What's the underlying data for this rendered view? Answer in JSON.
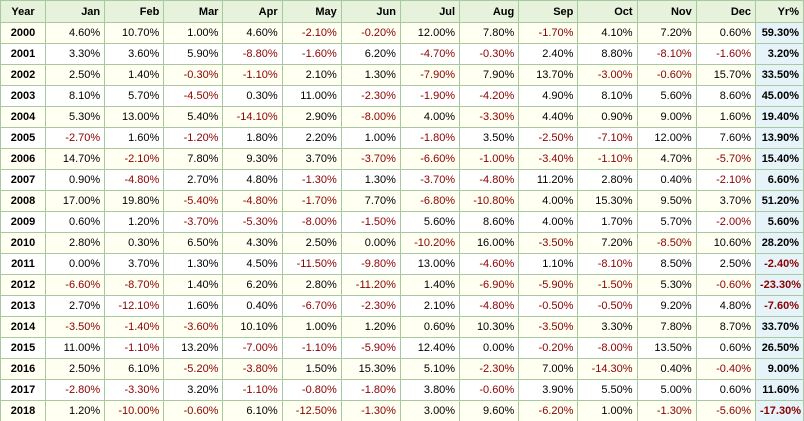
{
  "table": {
    "header": [
      "Year",
      "Jan",
      "Feb",
      "Mar",
      "Apr",
      "May",
      "Jun",
      "Jul",
      "Aug",
      "Sep",
      "Oct",
      "Nov",
      "Dec",
      "Yr%"
    ],
    "rows": [
      [
        "2000",
        "4.60%",
        "10.70%",
        "1.00%",
        "4.60%",
        "-2.10%",
        "-0.20%",
        "12.00%",
        "7.80%",
        "-1.70%",
        "4.10%",
        "7.20%",
        "0.60%",
        "59.30%"
      ],
      [
        "2001",
        "3.30%",
        "3.60%",
        "5.90%",
        "-8.80%",
        "-1.60%",
        "6.20%",
        "-4.70%",
        "-0.30%",
        "2.40%",
        "8.80%",
        "-8.10%",
        "-1.60%",
        "3.20%"
      ],
      [
        "2002",
        "2.50%",
        "1.40%",
        "-0.30%",
        "-1.10%",
        "2.10%",
        "1.30%",
        "-7.90%",
        "7.90%",
        "13.70%",
        "-3.00%",
        "-0.60%",
        "15.70%",
        "33.50%"
      ],
      [
        "2003",
        "8.10%",
        "5.70%",
        "-4.50%",
        "0.30%",
        "11.00%",
        "-2.30%",
        "-1.90%",
        "-4.20%",
        "4.90%",
        "8.10%",
        "5.60%",
        "8.60%",
        "45.00%"
      ],
      [
        "2004",
        "5.30%",
        "13.00%",
        "5.40%",
        "-14.10%",
        "2.90%",
        "-8.00%",
        "4.00%",
        "-3.30%",
        "4.40%",
        "0.90%",
        "9.00%",
        "1.60%",
        "19.40%"
      ],
      [
        "2005",
        "-2.70%",
        "1.60%",
        "-1.20%",
        "1.80%",
        "2.20%",
        "1.00%",
        "-1.80%",
        "3.50%",
        "-2.50%",
        "-7.10%",
        "12.00%",
        "7.60%",
        "13.90%"
      ],
      [
        "2006",
        "14.70%",
        "-2.10%",
        "7.80%",
        "9.30%",
        "3.70%",
        "-3.70%",
        "-6.60%",
        "-1.00%",
        "-3.40%",
        "-1.10%",
        "4.70%",
        "-5.70%",
        "15.40%"
      ],
      [
        "2007",
        "0.90%",
        "-4.80%",
        "2.70%",
        "4.80%",
        "-1.30%",
        "1.30%",
        "-3.70%",
        "-4.80%",
        "11.20%",
        "2.80%",
        "0.40%",
        "-2.10%",
        "6.60%"
      ],
      [
        "2008",
        "17.00%",
        "19.80%",
        "-5.40%",
        "-4.80%",
        "-1.70%",
        "7.70%",
        "-6.80%",
        "-10.80%",
        "4.00%",
        "15.30%",
        "9.50%",
        "3.70%",
        "51.20%"
      ],
      [
        "2009",
        "0.60%",
        "1.20%",
        "-3.70%",
        "-5.30%",
        "-8.00%",
        "-1.50%",
        "5.60%",
        "8.60%",
        "4.00%",
        "1.70%",
        "5.70%",
        "-2.00%",
        "5.60%"
      ],
      [
        "2010",
        "2.80%",
        "0.30%",
        "6.50%",
        "4.30%",
        "2.50%",
        "0.00%",
        "-10.20%",
        "16.00%",
        "-3.50%",
        "7.20%",
        "-8.50%",
        "10.60%",
        "28.20%"
      ],
      [
        "2011",
        "0.00%",
        "3.70%",
        "1.30%",
        "4.50%",
        "-11.50%",
        "-9.80%",
        "13.00%",
        "-4.60%",
        "1.10%",
        "-8.10%",
        "8.50%",
        "2.50%",
        "-2.40%"
      ],
      [
        "2012",
        "-6.60%",
        "-8.70%",
        "1.40%",
        "6.20%",
        "2.80%",
        "-11.20%",
        "1.40%",
        "-6.90%",
        "-5.90%",
        "-1.50%",
        "5.30%",
        "-0.60%",
        "-23.30%"
      ],
      [
        "2013",
        "2.70%",
        "-12.10%",
        "1.60%",
        "0.40%",
        "-6.70%",
        "-2.30%",
        "2.10%",
        "-4.80%",
        "-0.50%",
        "-0.50%",
        "9.20%",
        "4.80%",
        "-7.60%"
      ],
      [
        "2014",
        "-3.50%",
        "-1.40%",
        "-3.60%",
        "10.10%",
        "1.00%",
        "1.20%",
        "0.60%",
        "10.30%",
        "-3.50%",
        "3.30%",
        "7.80%",
        "8.70%",
        "33.70%"
      ],
      [
        "2015",
        "11.00%",
        "-1.10%",
        "13.20%",
        "-7.00%",
        "-1.10%",
        "-5.90%",
        "12.40%",
        "0.00%",
        "-0.20%",
        "-8.00%",
        "13.50%",
        "0.60%",
        "26.50%"
      ],
      [
        "2016",
        "2.50%",
        "6.10%",
        "-5.20%",
        "-3.80%",
        "1.50%",
        "15.30%",
        "5.10%",
        "-2.30%",
        "7.00%",
        "-14.30%",
        "0.40%",
        "-0.40%",
        "9.00%"
      ],
      [
        "2017",
        "-2.80%",
        "-3.30%",
        "3.20%",
        "-1.10%",
        "-0.80%",
        "-1.80%",
        "3.80%",
        "-0.60%",
        "3.90%",
        "5.50%",
        "5.00%",
        "0.60%",
        "11.60%"
      ],
      [
        "2018",
        "1.20%",
        "-10.00%",
        "-0.60%",
        "6.10%",
        "-12.50%",
        "-1.30%",
        "3.00%",
        "9.60%",
        "-6.20%",
        "1.00%",
        "-1.30%",
        "-5.60%",
        "-17.30%"
      ]
    ]
  }
}
